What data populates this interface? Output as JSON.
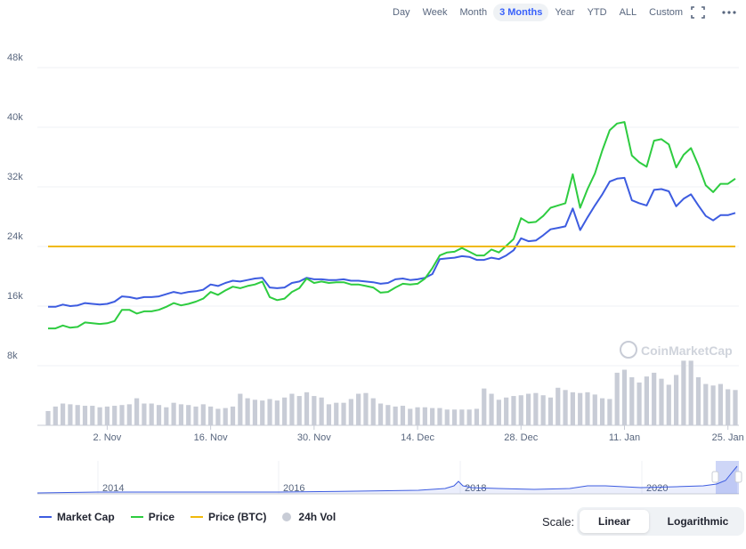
{
  "range_buttons": [
    {
      "label": "Day"
    },
    {
      "label": "Week"
    },
    {
      "label": "Month"
    },
    {
      "label": "3 Months",
      "active": true
    },
    {
      "label": "Year"
    },
    {
      "label": "YTD"
    },
    {
      "label": "ALL"
    },
    {
      "label": "Custom"
    }
  ],
  "icons": {
    "fullscreen": "fullscreen-icon",
    "more": "more-icon"
  },
  "watermark": "CoinMarketCap",
  "legend": [
    {
      "label": "Market Cap",
      "color": "#3d5ce0",
      "kind": "line"
    },
    {
      "label": "Price",
      "color": "#2ecc40",
      "kind": "line"
    },
    {
      "label": "Price (BTC)",
      "color": "#f0b90b",
      "kind": "line"
    },
    {
      "label": "24h Vol",
      "color": "#c8ccd6",
      "kind": "dot"
    }
  ],
  "scale": {
    "label": "Scale:",
    "options": [
      "Linear",
      "Logarithmic"
    ],
    "selected": "Linear"
  },
  "chart_data": {
    "type": "line",
    "grid": true,
    "y_ticks": [
      "8k",
      "16k",
      "24k",
      "32k",
      "40k",
      "48k"
    ],
    "ylim": [
      0,
      48000
    ],
    "x_ticks": [
      {
        "label": "2. Nov",
        "day": 8
      },
      {
        "label": "16. Nov",
        "day": 22
      },
      {
        "label": "30. Nov",
        "day": 36
      },
      {
        "label": "14. Dec",
        "day": 50
      },
      {
        "label": "28. Dec",
        "day": 64
      },
      {
        "label": "11. Jan",
        "day": 78
      },
      {
        "label": "25. Jan",
        "day": 92
      }
    ],
    "x_range": [
      0,
      93
    ],
    "series": [
      {
        "name": "Market Cap",
        "color": "#3d5ce0",
        "values": [
          15900,
          15900,
          16200,
          16000,
          16100,
          16400,
          16300,
          16200,
          16300,
          16600,
          17300,
          17200,
          17000,
          17200,
          17200,
          17300,
          17600,
          17900,
          17700,
          17900,
          18000,
          18200,
          18900,
          18700,
          19100,
          19400,
          19300,
          19500,
          19700,
          19800,
          18500,
          18400,
          18500,
          19100,
          19300,
          19800,
          19600,
          19600,
          19500,
          19500,
          19600,
          19400,
          19400,
          19300,
          19200,
          19000,
          19100,
          19600,
          19700,
          19500,
          19600,
          19800,
          20300,
          22300,
          22400,
          22500,
          22700,
          22600,
          22200,
          22200,
          22500,
          22300,
          22800,
          23500,
          25100,
          24700,
          24800,
          25500,
          26300,
          26500,
          26700,
          29100,
          26200,
          27900,
          29500,
          31000,
          32700,
          33100,
          33200,
          30200,
          29800,
          29500,
          31600,
          31700,
          31400,
          29400,
          30400,
          31000,
          29500,
          28100,
          27500,
          28200,
          28200,
          28500
        ]
      },
      {
        "name": "Price",
        "color": "#2ecc40",
        "values": [
          13000,
          13000,
          13400,
          13100,
          13200,
          13800,
          13700,
          13600,
          13700,
          14000,
          15500,
          15500,
          15000,
          15300,
          15300,
          15500,
          15900,
          16400,
          16100,
          16300,
          16600,
          17000,
          17900,
          17500,
          18100,
          18600,
          18400,
          18700,
          18900,
          19300,
          17200,
          16800,
          17000,
          17900,
          18400,
          19700,
          19100,
          19300,
          19100,
          19200,
          19200,
          18900,
          18900,
          18700,
          18500,
          17800,
          17900,
          18500,
          19000,
          18900,
          19000,
          19700,
          21100,
          22800,
          23200,
          23300,
          23800,
          23300,
          22800,
          22800,
          23600,
          23200,
          24100,
          25000,
          27800,
          27200,
          27300,
          28100,
          29200,
          29500,
          29800,
          33700,
          29200,
          31700,
          33800,
          36900,
          39600,
          40500,
          40700,
          36200,
          35300,
          34700,
          38200,
          38400,
          37700,
          34600,
          36300,
          37200,
          34900,
          32200,
          31300,
          32400,
          32400,
          33100
        ]
      },
      {
        "name": "Price (BTC)",
        "color": "#f0b90b",
        "values": [
          24000,
          24000
        ],
        "x": [
          0,
          93
        ]
      },
      {
        "name": "24h Vol",
        "color": "#c8ccd6",
        "values": [
          1900,
          2500,
          2900,
          2800,
          2700,
          2600,
          2600,
          2400,
          2500,
          2600,
          2700,
          2800,
          3600,
          2900,
          2900,
          2700,
          2400,
          3000,
          2800,
          2700,
          2500,
          2800,
          2500,
          2200,
          2300,
          2500,
          4200,
          3600,
          3400,
          3300,
          3500,
          3300,
          3700,
          4200,
          3900,
          4400,
          3900,
          3700,
          2800,
          3000,
          3000,
          3500,
          4200,
          4300,
          3600,
          2900,
          2700,
          2500,
          2600,
          2200,
          2400,
          2400,
          2300,
          2300,
          2100,
          2100,
          2100,
          2100,
          2200,
          4900,
          4200,
          3400,
          3700,
          3900,
          4000,
          4200,
          4300,
          4000,
          3700,
          5000,
          4700,
          4400,
          4300,
          4400,
          4100,
          3600,
          3500,
          7000,
          7400,
          6400,
          5700,
          6500,
          7000,
          6200,
          5400,
          6700,
          8600,
          8600,
          6400,
          5500,
          5300,
          5500,
          4800,
          4700
        ]
      }
    ],
    "navigator": {
      "x_ticks": [
        "2014",
        "2016",
        "2018",
        "2020"
      ]
    }
  }
}
